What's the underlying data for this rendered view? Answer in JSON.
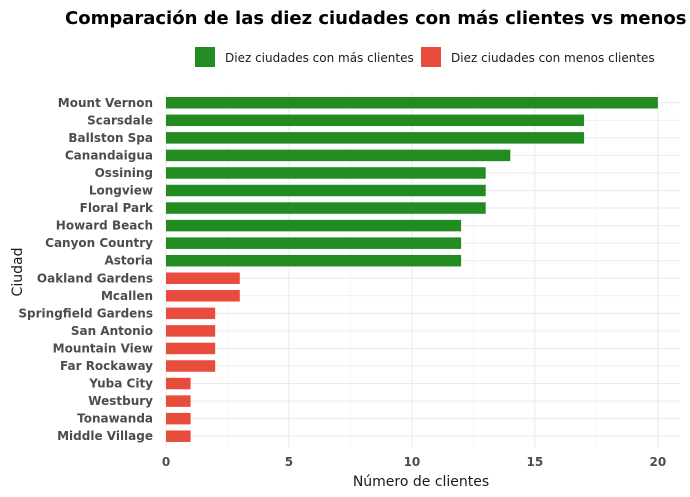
{
  "chart_data": {
    "type": "bar",
    "orientation": "horizontal",
    "title": "Comparación de las diez ciudades con más clientes vs menos",
    "xlabel": "Número de clientes",
    "ylabel": "Ciudad",
    "xlim": [
      0,
      20.9
    ],
    "xticks": [
      0,
      5,
      10,
      15,
      20
    ],
    "grid": true,
    "legend_position": "top",
    "categories": [
      "Mount Vernon",
      "Scarsdale",
      "Ballston Spa",
      "Canandaigua",
      "Ossining",
      "Longview",
      "Floral Park",
      "Howard Beach",
      "Canyon Country",
      "Astoria",
      "Oakland Gardens",
      "Mcallen",
      "Springfield Gardens",
      "San Antonio",
      "Mountain View",
      "Far Rockaway",
      "Yuba City",
      "Westbury",
      "Tonawanda",
      "Middle Village"
    ],
    "values": [
      20,
      17,
      17,
      14,
      13,
      13,
      13,
      12,
      12,
      12,
      3,
      3,
      2,
      2,
      2,
      2,
      1,
      1,
      1,
      1
    ],
    "groups": [
      "more",
      "more",
      "more",
      "more",
      "more",
      "more",
      "more",
      "more",
      "more",
      "more",
      "less",
      "less",
      "less",
      "less",
      "less",
      "less",
      "less",
      "less",
      "less",
      "less"
    ],
    "series": [
      {
        "key": "more",
        "name": "Diez ciudades con más clientes",
        "color": "#228B22"
      },
      {
        "key": "less",
        "name": "Diez ciudades con menos clientes",
        "color": "#E74C3C"
      }
    ]
  }
}
